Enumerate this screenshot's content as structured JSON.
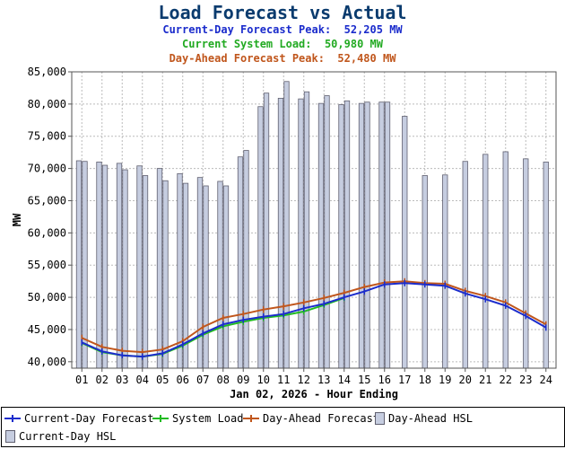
{
  "header": {
    "title": "Load Forecast vs Actual",
    "current_day_peak": "Current-Day Forecast Peak:  52,205 MW",
    "system_load": "Current System Load:  50,980 MW",
    "day_ahead_peak": "Day-Ahead Forecast Peak:  52,480 MW"
  },
  "colors": {
    "current_day": "#1b2ccc",
    "system_load": "#22bb22",
    "day_ahead": "#c0561c",
    "hsl_fill": "#c6cde0",
    "hsl_stroke": "#606070",
    "title": "#0a3b6e"
  },
  "chart_data": {
    "type": "bar",
    "xlabel": "Jan 02, 2026 - Hour Ending",
    "ylabel": "MW",
    "ylim": [
      39000,
      85000
    ],
    "yticks": [
      40000,
      45000,
      50000,
      55000,
      60000,
      65000,
      70000,
      75000,
      80000,
      85000
    ],
    "ytick_labels": [
      "40,000",
      "45,000",
      "50,000",
      "55,000",
      "60,000",
      "65,000",
      "70,000",
      "75,000",
      "80,000",
      "85,000"
    ],
    "categories": [
      "01",
      "02",
      "03",
      "04",
      "05",
      "06",
      "07",
      "08",
      "09",
      "10",
      "11",
      "12",
      "13",
      "14",
      "15",
      "16",
      "17",
      "18",
      "19",
      "20",
      "21",
      "22",
      "23",
      "24"
    ],
    "grid": true,
    "legend_position": "bottom",
    "series": [
      {
        "name": "Day-Ahead HSL",
        "kind": "bar",
        "values": [
          71200,
          71000,
          70800,
          70400,
          70000,
          69200,
          68600,
          68000,
          71800,
          79600,
          80900,
          80800,
          80100,
          79900,
          80100,
          80300,
          null,
          null,
          null,
          null,
          null,
          null,
          null,
          null
        ]
      },
      {
        "name": "Current-Day HSL",
        "kind": "bar",
        "values": [
          71100,
          70500,
          69800,
          68900,
          68100,
          67700,
          67300,
          67300,
          72800,
          81700,
          83500,
          81900,
          81300,
          80500,
          80300,
          80300,
          78100,
          68900,
          69000,
          71100,
          72200,
          72600,
          71500,
          71000
        ]
      },
      {
        "name": "Current-Day Forecast",
        "kind": "line",
        "values": [
          43000,
          41600,
          41000,
          40800,
          41300,
          42700,
          44400,
          45800,
          46500,
          47000,
          47400,
          48300,
          49000,
          50000,
          50900,
          52000,
          52205,
          52000,
          51800,
          50600,
          49700,
          48700,
          47100,
          45300
        ]
      },
      {
        "name": "System Load",
        "kind": "line",
        "values": [
          42900,
          41500,
          41000,
          40800,
          41200,
          42500,
          44200,
          45500,
          46200,
          46800,
          47200,
          47800,
          48800,
          49900,
          null,
          null,
          null,
          null,
          null,
          null,
          null,
          null,
          null,
          null
        ]
      },
      {
        "name": "Day-Ahead Forecast",
        "kind": "line",
        "values": [
          43700,
          42300,
          41700,
          41500,
          41900,
          43200,
          45400,
          46800,
          47400,
          48100,
          48600,
          49200,
          49900,
          50700,
          51600,
          52300,
          52480,
          52200,
          52100,
          51000,
          50200,
          49200,
          47500,
          45800
        ]
      }
    ]
  },
  "legend": {
    "current_day": "Current-Day Forecast",
    "system_load": "System Load",
    "day_ahead": "Day-Ahead Forecast",
    "day_ahead_hsl": "Day-Ahead HSL",
    "current_day_hsl": "Current-Day HSL"
  }
}
